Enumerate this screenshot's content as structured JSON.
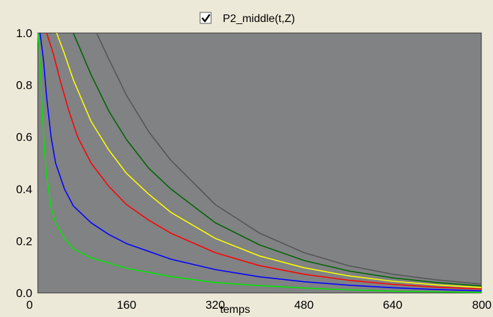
{
  "legend": {
    "checkbox_checked": true,
    "label": "P2_middle(t,Z)"
  },
  "chart_data": {
    "type": "line",
    "title": "",
    "xlabel": "temps",
    "ylabel": "",
    "xlim": [
      0,
      800
    ],
    "ylim": [
      0,
      1.0
    ],
    "x_ticks": [
      0,
      160,
      320,
      480,
      640,
      800
    ],
    "x_tick_labels": [
      "0",
      "160",
      "320",
      "480",
      "640",
      "800"
    ],
    "y_ticks": [
      0,
      0.2,
      0.4,
      0.6,
      0.8,
      1.0
    ],
    "y_tick_labels": [
      "0.0",
      "0.2",
      "0.4",
      "0.6",
      "0.8",
      "1.0"
    ],
    "grid": false,
    "plot_background": "#808284",
    "series": [
      {
        "color": "#00e600",
        "points": [
          [
            0,
            1.0
          ],
          [
            4,
            0.9
          ],
          [
            8,
            0.7
          ],
          [
            12,
            0.55
          ],
          [
            16,
            0.45
          ],
          [
            24,
            0.33
          ],
          [
            32,
            0.27
          ],
          [
            48,
            0.21
          ],
          [
            64,
            0.17
          ],
          [
            96,
            0.135
          ],
          [
            128,
            0.115
          ],
          [
            160,
            0.095
          ],
          [
            240,
            0.063
          ],
          [
            320,
            0.04
          ],
          [
            400,
            0.028
          ],
          [
            480,
            0.019
          ],
          [
            560,
            0.012
          ],
          [
            640,
            0.007
          ],
          [
            720,
            0.004
          ],
          [
            800,
            0.002
          ]
        ]
      },
      {
        "color": "#0000ff",
        "points": [
          [
            4,
            1.0
          ],
          [
            10,
            0.9
          ],
          [
            16,
            0.75
          ],
          [
            24,
            0.6
          ],
          [
            32,
            0.5
          ],
          [
            48,
            0.4
          ],
          [
            64,
            0.335
          ],
          [
            96,
            0.27
          ],
          [
            128,
            0.225
          ],
          [
            160,
            0.19
          ],
          [
            240,
            0.13
          ],
          [
            320,
            0.09
          ],
          [
            400,
            0.062
          ],
          [
            480,
            0.043
          ],
          [
            560,
            0.03
          ],
          [
            640,
            0.02
          ],
          [
            720,
            0.013
          ],
          [
            800,
            0.008
          ]
        ]
      },
      {
        "color": "#ff0000",
        "points": [
          [
            16,
            1.0
          ],
          [
            28,
            0.92
          ],
          [
            40,
            0.82
          ],
          [
            56,
            0.7
          ],
          [
            72,
            0.6
          ],
          [
            96,
            0.5
          ],
          [
            128,
            0.41
          ],
          [
            160,
            0.34
          ],
          [
            200,
            0.28
          ],
          [
            240,
            0.23
          ],
          [
            320,
            0.155
          ],
          [
            400,
            0.105
          ],
          [
            480,
            0.072
          ],
          [
            560,
            0.049
          ],
          [
            640,
            0.033
          ],
          [
            720,
            0.022
          ],
          [
            800,
            0.015
          ]
        ]
      },
      {
        "color": "#ffff00",
        "points": [
          [
            34,
            1.0
          ],
          [
            48,
            0.92
          ],
          [
            64,
            0.82
          ],
          [
            96,
            0.66
          ],
          [
            128,
            0.55
          ],
          [
            160,
            0.46
          ],
          [
            200,
            0.38
          ],
          [
            240,
            0.31
          ],
          [
            320,
            0.21
          ],
          [
            400,
            0.142
          ],
          [
            480,
            0.097
          ],
          [
            560,
            0.066
          ],
          [
            640,
            0.045
          ],
          [
            720,
            0.031
          ],
          [
            800,
            0.021
          ]
        ]
      },
      {
        "color": "#006400",
        "points": [
          [
            64,
            1.0
          ],
          [
            80,
            0.92
          ],
          [
            96,
            0.84
          ],
          [
            128,
            0.7
          ],
          [
            160,
            0.59
          ],
          [
            200,
            0.48
          ],
          [
            240,
            0.4
          ],
          [
            320,
            0.27
          ],
          [
            400,
            0.185
          ],
          [
            480,
            0.125
          ],
          [
            560,
            0.085
          ],
          [
            640,
            0.058
          ],
          [
            720,
            0.04
          ],
          [
            800,
            0.027
          ]
        ]
      },
      {
        "color": "#555555",
        "points": [
          [
            106,
            1.0
          ],
          [
            128,
            0.9
          ],
          [
            160,
            0.76
          ],
          [
            200,
            0.62
          ],
          [
            240,
            0.51
          ],
          [
            320,
            0.34
          ],
          [
            400,
            0.23
          ],
          [
            480,
            0.155
          ],
          [
            560,
            0.105
          ],
          [
            640,
            0.072
          ],
          [
            720,
            0.05
          ],
          [
            800,
            0.034
          ]
        ]
      }
    ]
  }
}
